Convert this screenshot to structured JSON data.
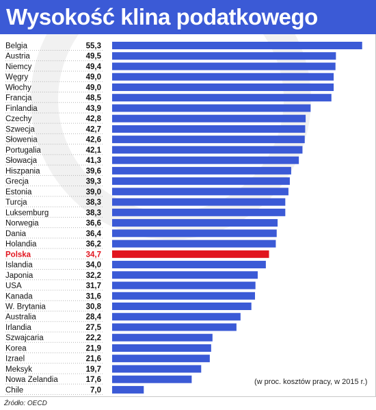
{
  "title": "Wysokość klina podatkowego",
  "source": "Źródło: OECD",
  "colors": {
    "header": "#3b5ad6",
    "bar": "#3b5ad6",
    "highlight": "#e1141e"
  },
  "chart_data": {
    "type": "bar",
    "orientation": "horizontal",
    "title": "Wysokość klina podatkowego",
    "note": "(w proc. kosztów pracy, w 2015 r.)",
    "highlight_category": "Polska",
    "xlim": [
      0,
      57
    ],
    "categories": [
      "Belgia",
      "Austria",
      "Niemcy",
      "Węgry",
      "Włochy",
      "Francja",
      "Finlandia",
      "Czechy",
      "Szwecja",
      "Słowenia",
      "Portugalia",
      "Słowacja",
      "Hiszpania",
      "Grecja",
      "Estonia",
      "Turcja",
      "Luksemburg",
      "Norwegia",
      "Dania",
      "Holandia",
      "Polska",
      "Islandia",
      "Japonia",
      "USA",
      "Kanada",
      "W. Brytania",
      "Australia",
      "Irlandia",
      "Szwajcaria",
      "Korea",
      "Izrael",
      "Meksyk",
      "Nowa Zelandia",
      "Chile"
    ],
    "values": [
      55.3,
      49.5,
      49.4,
      49.0,
      49.0,
      48.5,
      43.9,
      42.8,
      42.7,
      42.6,
      42.1,
      41.3,
      39.6,
      39.3,
      39.0,
      38.3,
      38.3,
      36.6,
      36.4,
      36.2,
      34.7,
      34.0,
      32.2,
      31.7,
      31.6,
      30.8,
      28.4,
      27.5,
      22.2,
      21.9,
      21.6,
      19.7,
      17.6,
      7.0
    ],
    "labels": [
      "55,3",
      "49,5",
      "49,4",
      "49,0",
      "49,0",
      "48,5",
      "43,9",
      "42,8",
      "42,7",
      "42,6",
      "42,1",
      "41,3",
      "39,6",
      "39,3",
      "39,0",
      "38,3",
      "38,3",
      "36,6",
      "36,4",
      "36,2",
      "34,7",
      "34,0",
      "32,2",
      "31,7",
      "31,6",
      "30,8",
      "28,4",
      "27,5",
      "22,2",
      "21,9",
      "21,6",
      "19,7",
      "17,6",
      "7,0"
    ]
  }
}
